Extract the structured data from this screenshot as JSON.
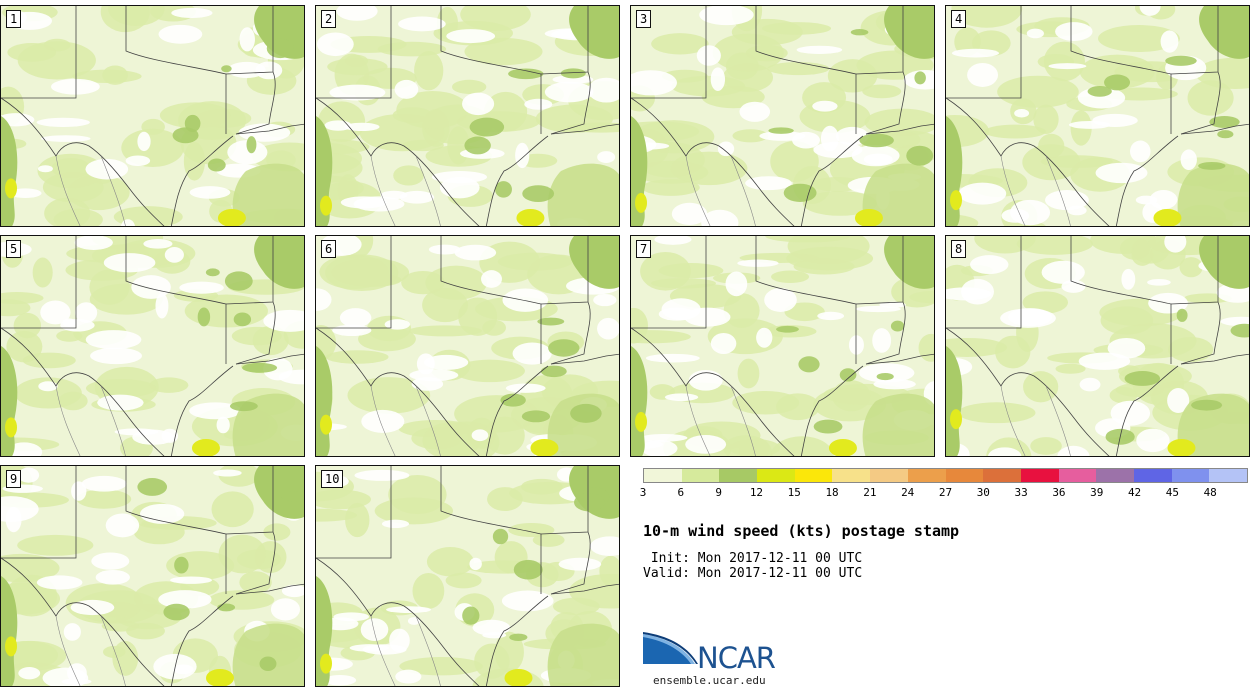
{
  "panels": [
    {
      "label": "1"
    },
    {
      "label": "2"
    },
    {
      "label": "3"
    },
    {
      "label": "4"
    },
    {
      "label": "5"
    },
    {
      "label": "6"
    },
    {
      "label": "7"
    },
    {
      "label": "8"
    },
    {
      "label": "9"
    },
    {
      "label": "10"
    }
  ],
  "colorbar": {
    "colors": [
      "#f1f6d9",
      "#d6ea9c",
      "#a7c965",
      "#dbe815",
      "#fbe70a",
      "#f7e18a",
      "#f4ca84",
      "#ec9f4b",
      "#e7883b",
      "#dc703a",
      "#e8113f",
      "#e65e9e",
      "#9c72a9",
      "#5f65e5",
      "#7f91ee",
      "#b4c3f6"
    ],
    "labels": [
      "3",
      "6",
      "9",
      "12",
      "15",
      "18",
      "21",
      "24",
      "27",
      "30",
      "33",
      "36",
      "39",
      "42",
      "45",
      "48"
    ]
  },
  "title": "10-m wind speed (kts) postage stamp",
  "init_line": " Init: Mon 2017-12-11 00 UTC",
  "valid_line": "Valid: Mon 2017-12-11 00 UTC",
  "logo": {
    "text": "NCAR",
    "url": "ensemble.ucar.edu"
  }
}
